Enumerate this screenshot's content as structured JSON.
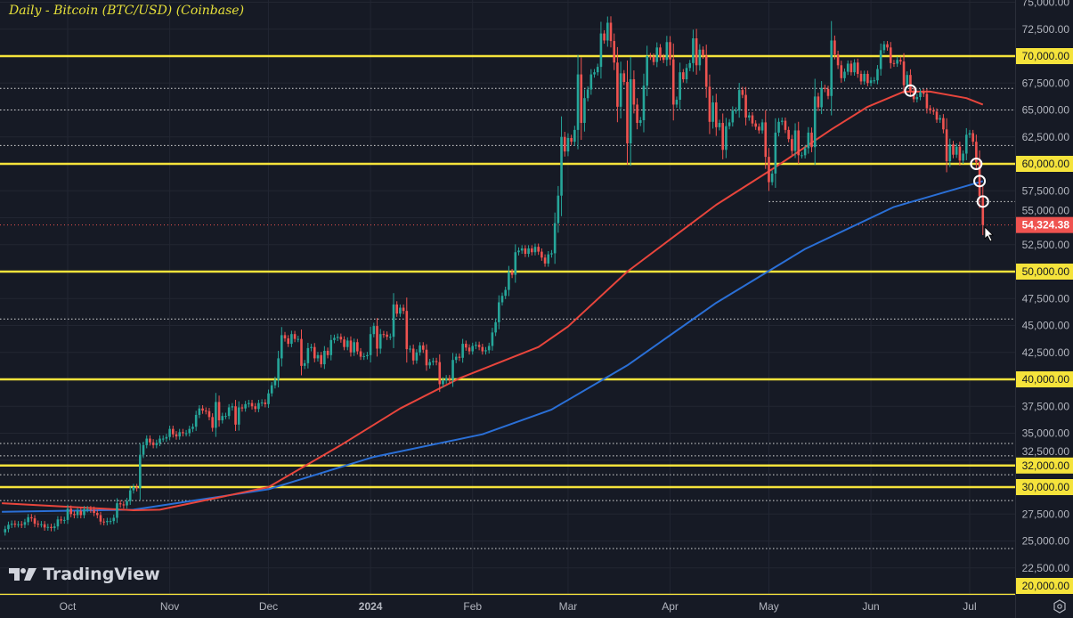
{
  "header": {
    "title": "Daily - Bitcoin (BTC/USD) (Coinbase)"
  },
  "branding": {
    "logo_text": "TradingView"
  },
  "chart_data": {
    "type": "candlestick",
    "title": "Daily - Bitcoin (BTC/USD) (Coinbase)",
    "ylim": [
      20000,
      75000
    ],
    "grid": true,
    "colors": {
      "up": "#26a69a",
      "down": "#ef5350",
      "level": "#f5e33b",
      "ma_red": "#e8453c",
      "ma_blue": "#2a6fd6",
      "background": "#161a25"
    },
    "y_ticks": [
      "75,000.00",
      "72,500.00",
      "67,500.00",
      "65,000.00",
      "62,500.00",
      "57,500.00",
      "55,000.00",
      "52,500.00",
      "47,500.00",
      "45,000.00",
      "42,500.00",
      "37,500.00",
      "35,000.00",
      "32,500.00",
      "27,500.00",
      "25,000.00",
      "22,500.00"
    ],
    "x_ticks": [
      {
        "label": "Oct",
        "date": "2023-10-01"
      },
      {
        "label": "Nov",
        "date": "2023-11-01"
      },
      {
        "label": "Dec",
        "date": "2023-12-01"
      },
      {
        "label": "2024",
        "date": "2024-01-01"
      },
      {
        "label": "Feb",
        "date": "2024-02-01"
      },
      {
        "label": "Mar",
        "date": "2024-03-01"
      },
      {
        "label": "Apr",
        "date": "2024-04-01"
      },
      {
        "label": "May",
        "date": "2024-05-01"
      },
      {
        "label": "Jun",
        "date": "2024-06-01"
      },
      {
        "label": "Jul",
        "date": "2024-07-01"
      }
    ],
    "key_levels": [
      {
        "value": 70000,
        "label": "70,000.00"
      },
      {
        "value": 60000,
        "label": "60,000.00"
      },
      {
        "value": 50000,
        "label": "50,000.00"
      },
      {
        "value": 40000,
        "label": "40,000.00"
      },
      {
        "value": 32000,
        "label": "32,000.00"
      },
      {
        "value": 30000,
        "label": "30,000.00"
      },
      {
        "value": 20000,
        "label": "20,000.00"
      }
    ],
    "dotted_levels": [
      67000,
      65000,
      61700,
      45600,
      34050,
      32900,
      31150,
      28750,
      24300
    ],
    "dotted_levels_from_may": [
      56500
    ],
    "last_price": {
      "value": 54324.38,
      "label": "54,324.38"
    },
    "markers": [
      {
        "date": "2024-06-13",
        "value": 66800
      },
      {
        "date": "2024-07-03",
        "value": 60000
      },
      {
        "date": "2024-07-04",
        "value": 58400
      },
      {
        "date": "2024-07-05",
        "value": 56500
      }
    ],
    "closes": {
      "2023-09": [
        null,
        null,
        null,
        null,
        null,
        null,
        null,
        null,
        null,
        null,
        null,
        26100,
        26500,
        26600,
        26550,
        26550,
        26500,
        26750,
        27200,
        27100,
        26600,
        26550,
        26550,
        26250,
        26300,
        26200,
        26350,
        27000,
        26900,
        26950
      ],
      "2023-10": [
        28000,
        27500,
        27400,
        27800,
        27400,
        27950,
        27950,
        27900,
        27600,
        27400,
        26800,
        26750,
        26850,
        26850,
        27150,
        28500,
        28400,
        28300,
        28700,
        29700,
        30000,
        29900,
        33000,
        33900,
        34500,
        34150,
        33900,
        34100,
        34500,
        34500,
        34650
      ],
      "2023-11": [
        35400,
        34900,
        34700,
        35100,
        35000,
        35000,
        35400,
        35600,
        36700,
        37300,
        37100,
        37050,
        36500,
        35500,
        37900,
        36200,
        36600,
        36600,
        37400,
        37500,
        35800,
        37400,
        37300,
        37700,
        37800,
        37500,
        37250,
        37800,
        37850,
        37700
      ],
      "2023-12": [
        38700,
        39450,
        39950,
        41950,
        44100,
        43800,
        43300,
        44200,
        43750,
        43750,
        41250,
        41500,
        42900,
        43000,
        41950,
        42250,
        41400,
        42650,
        42250,
        43650,
        43850,
        43950,
        43700,
        43000,
        43600,
        42500,
        43450,
        42600,
        42100,
        42150,
        42250
      ],
      "2024-01": [
        44200,
        44950,
        42850,
        44200,
        44150,
        43950,
        43950,
        46950,
        46100,
        46650,
        46350,
        42800,
        42850,
        41750,
        42500,
        43150,
        42750,
        41300,
        41600,
        41700,
        41600,
        39550,
        39900,
        40100,
        39950,
        41800,
        42100,
        42000,
        43300,
        42950,
        42600
      ],
      "2024-02": [
        43100,
        43200,
        43000,
        42600,
        42700,
        43100,
        44350,
        45300,
        47150,
        47750,
        48300,
        49950,
        49700,
        51800,
        51950,
        52150,
        51650,
        52150,
        51800,
        52300,
        51850,
        51300,
        50750,
        51600,
        51700,
        54500,
        57050,
        62500,
        61150
      ],
      "2024-03": [
        62400,
        62050,
        63150,
        68300,
        63800,
        66100,
        66900,
        68300,
        68500,
        69000,
        72100,
        71450,
        73100,
        71400,
        69400,
        65300,
        68400,
        67600,
        61900,
        67850,
        65500,
        63800,
        64050,
        67250,
        70000,
        69950,
        69450,
        70800,
        69900,
        69650,
        71300
      ],
      "2024-04": [
        69700,
        65500,
        65950,
        68500,
        67850,
        68900,
        69350,
        71650,
        69150,
        70600,
        70050,
        67150,
        63900,
        65700,
        63400,
        63800,
        61300,
        63500,
        63850,
        64950,
        64950,
        66850,
        66400,
        64300,
        64500,
        63750,
        63450,
        63100,
        63850,
        60650
      ],
      "2024-05": [
        58300,
        59100,
        62900,
        63900,
        64000,
        63150,
        62300,
        61200,
        63100,
        60800,
        60800,
        61450,
        62900,
        61550,
        66250,
        65250,
        67050,
        66950,
        66300,
        71450,
        70150,
        69150,
        67950,
        68550,
        69300,
        68500,
        69400,
        68350,
        67650,
        68350,
        67500
      ],
      "2024-06": [
        67750,
        67750,
        68800,
        70550,
        71100,
        70800,
        69350,
        69300,
        69650,
        69500,
        67300,
        68250,
        66750,
        66000,
        66200,
        66650,
        66500,
        65150,
        64950,
        64850,
        64100,
        64250,
        63200,
        60250,
        61800,
        60850,
        61600,
        60300,
        60950,
        62700
      ],
      "2024-07": [
        62850,
        62050,
        60150,
        57000,
        54324.38
      ]
    },
    "ma_red": [
      {
        "date": "2023-09-11",
        "value": 28500
      },
      {
        "date": "2023-10-21",
        "value": 27850
      },
      {
        "date": "2023-10-29",
        "value": 27900
      },
      {
        "date": "2023-12-01",
        "value": 30000
      },
      {
        "date": "2023-12-23",
        "value": 33900
      },
      {
        "date": "2024-01-10",
        "value": 37300
      },
      {
        "date": "2024-01-28",
        "value": 40100
      },
      {
        "date": "2024-02-21",
        "value": 43000
      },
      {
        "date": "2024-03-01",
        "value": 44900
      },
      {
        "date": "2024-03-19",
        "value": 50000
      },
      {
        "date": "2024-04-15",
        "value": 56200
      },
      {
        "date": "2024-05-03",
        "value": 59700
      },
      {
        "date": "2024-05-20",
        "value": 63200
      },
      {
        "date": "2024-05-31",
        "value": 65300
      },
      {
        "date": "2024-06-11",
        "value": 66700
      },
      {
        "date": "2024-06-19",
        "value": 66700
      },
      {
        "date": "2024-06-30",
        "value": 66100
      },
      {
        "date": "2024-07-05",
        "value": 65500
      }
    ],
    "ma_blue": [
      {
        "date": "2023-09-11",
        "value": 27700
      },
      {
        "date": "2023-10-21",
        "value": 27900
      },
      {
        "date": "2023-12-01",
        "value": 29800
      },
      {
        "date": "2024-01-02",
        "value": 32800
      },
      {
        "date": "2024-02-04",
        "value": 34900
      },
      {
        "date": "2024-02-25",
        "value": 37200
      },
      {
        "date": "2024-03-19",
        "value": 41300
      },
      {
        "date": "2024-04-15",
        "value": 47100
      },
      {
        "date": "2024-05-12",
        "value": 52100
      },
      {
        "date": "2024-06-08",
        "value": 56000
      },
      {
        "date": "2024-07-05",
        "value": 58400
      }
    ]
  }
}
